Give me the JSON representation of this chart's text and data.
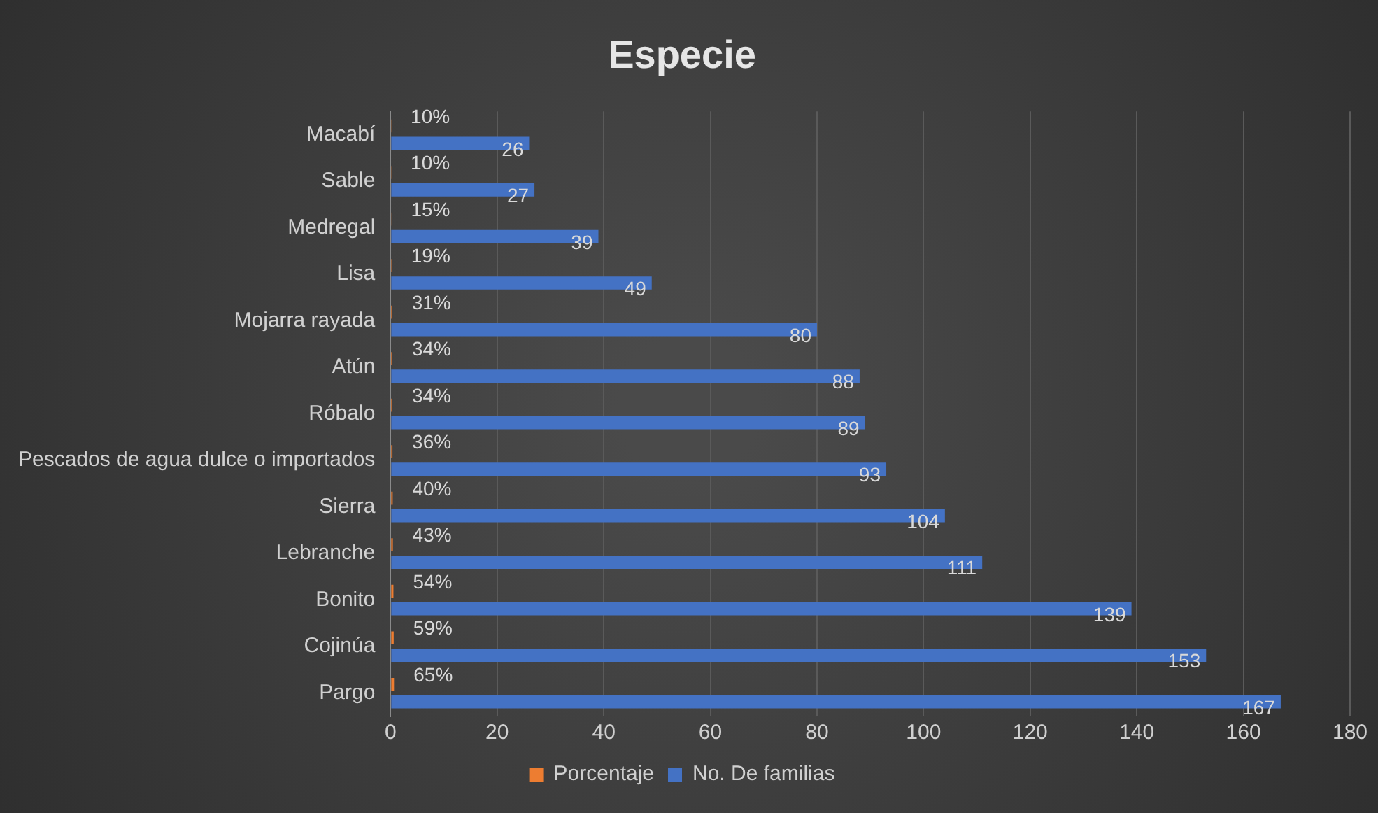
{
  "chart_data": {
    "type": "bar",
    "orientation": "horizontal",
    "title": "Especie",
    "categories": [
      "Macabí",
      "Sable",
      "Medregal",
      "Lisa",
      "Mojarra rayada",
      "Atún",
      "Róbalo",
      "Pescados de agua dulce o importados",
      "Sierra",
      "Lebranche",
      "Bonito",
      "Cojinúa",
      "Pargo"
    ],
    "series": [
      {
        "name": "Porcentaje",
        "color": "#ed7d31",
        "values": [
          0.1,
          0.1,
          0.15,
          0.19,
          0.31,
          0.34,
          0.34,
          0.36,
          0.4,
          0.43,
          0.54,
          0.59,
          0.65
        ],
        "value_labels": [
          "10%",
          "10%",
          "15%",
          "19%",
          "31%",
          "34%",
          "34%",
          "36%",
          "40%",
          "43%",
          "54%",
          "59%",
          "65%"
        ]
      },
      {
        "name": "No. De familias",
        "color": "#4472c4",
        "values": [
          26,
          27,
          39,
          49,
          80,
          88,
          89,
          93,
          104,
          111,
          139,
          153,
          167
        ],
        "value_labels": [
          "26",
          "27",
          "39",
          "49",
          "80",
          "88",
          "89",
          "93",
          "104",
          "111",
          "139",
          "153",
          "167"
        ]
      }
    ],
    "xlim": [
      0,
      180
    ],
    "xticks": [
      0,
      20,
      40,
      60,
      80,
      100,
      120,
      140,
      160,
      180
    ],
    "grid": "x",
    "legend": "bottom"
  }
}
